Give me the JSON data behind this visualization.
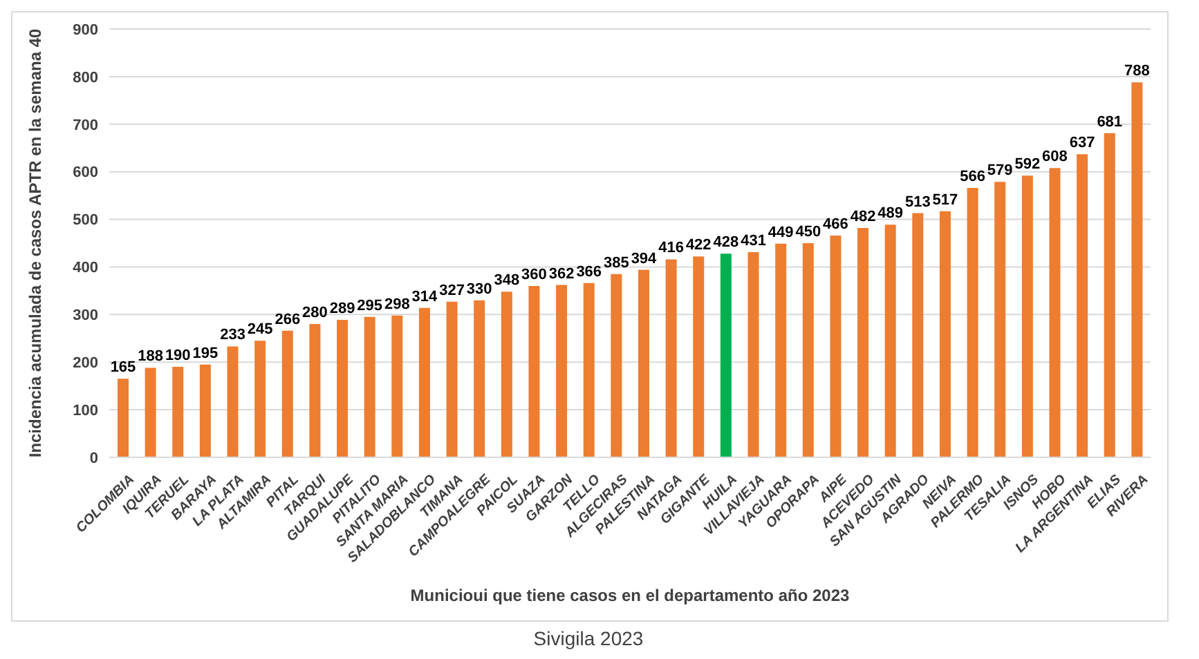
{
  "chart_data": {
    "type": "bar",
    "xlabel": "Municioui que tiene casos en el departamento año 2023",
    "ylabel": "Incidencia acumulada de casos APTR en la semana 40",
    "categories": [
      "COLOMBIA",
      "IQUIRA",
      "TERUEL",
      "BARAYA",
      "LA PLATA",
      "ALTAMIRA",
      "PITAL",
      "TARQUI",
      "GUADALUPE",
      "PITALITO",
      "SANTA MARIA",
      "SALADOBLANCO",
      "TIMANA",
      "CAMPOALEGRE",
      "PAICOL",
      "SUAZA",
      "GARZON",
      "TELLO",
      "ALGECIRAS",
      "PALESTINA",
      "NATAGA",
      "GIGANTE",
      "HUILA",
      "VILLAVIEJA",
      "YAGUARA",
      "OPORAPA",
      "AIPE",
      "ACEVEDO",
      "SAN AGUSTIN",
      "AGRADO",
      "NEIVA",
      "PALERMO",
      "TESALIA",
      "ISNOS",
      "HOBO",
      "LA ARGENTINA",
      "ELIAS",
      "RIVERA"
    ],
    "values": [
      165,
      188,
      190,
      195,
      233,
      245,
      266,
      280,
      289,
      295,
      298,
      314,
      327,
      330,
      348,
      360,
      362,
      366,
      385,
      394,
      416,
      422,
      428,
      431,
      449,
      450,
      466,
      482,
      489,
      513,
      517,
      566,
      579,
      592,
      608,
      637,
      681,
      788
    ],
    "colors": [
      "#ed7d31",
      "#ed7d31",
      "#ed7d31",
      "#ed7d31",
      "#ed7d31",
      "#ed7d31",
      "#ed7d31",
      "#ed7d31",
      "#ed7d31",
      "#ed7d31",
      "#ed7d31",
      "#ed7d31",
      "#ed7d31",
      "#ed7d31",
      "#ed7d31",
      "#ed7d31",
      "#ed7d31",
      "#ed7d31",
      "#ed7d31",
      "#ed7d31",
      "#ed7d31",
      "#ed7d31",
      "#00b050",
      "#ed7d31",
      "#ed7d31",
      "#ed7d31",
      "#ed7d31",
      "#ed7d31",
      "#ed7d31",
      "#ed7d31",
      "#ed7d31",
      "#ed7d31",
      "#ed7d31",
      "#ed7d31",
      "#ed7d31",
      "#ed7d31",
      "#ed7d31",
      "#ed7d31"
    ],
    "ylim": [
      0,
      900
    ],
    "yticks": [
      0,
      100,
      200,
      300,
      400,
      500,
      600,
      700,
      800,
      900
    ],
    "grid": "y",
    "data_labels": true,
    "annotations": [
      "Sivigila 2023"
    ]
  }
}
